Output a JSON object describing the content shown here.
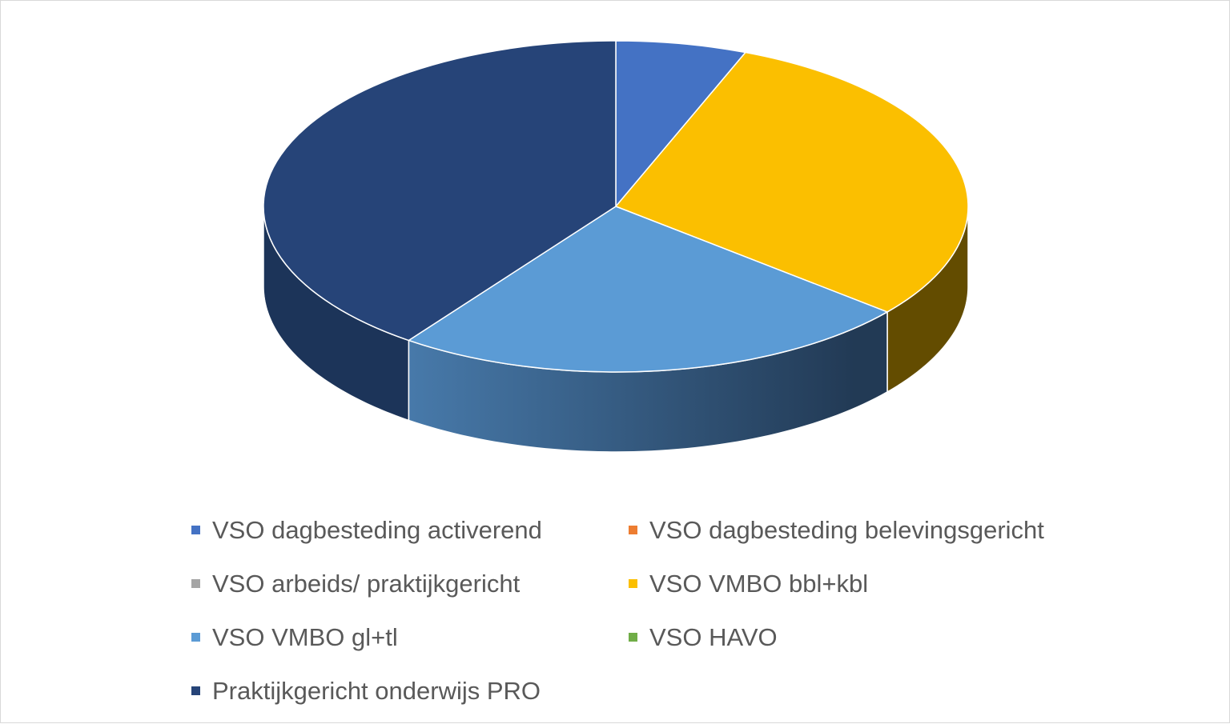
{
  "chart_data": {
    "type": "pie",
    "style": "3d",
    "categories": [
      "VSO dagbesteding activerend",
      "VSO dagbesteding belevingsgericht",
      "VSO arbeids/ praktijkgericht",
      "VSO VMBO bbl+kbl",
      "VSO VMBO gl+tl",
      "VSO HAVO",
      "Praktijkgericht onderwijs PRO"
    ],
    "values": [
      6,
      0,
      0,
      30,
      24,
      0,
      40
    ],
    "colors": [
      "#4472c4",
      "#ed7d31",
      "#a5a5a5",
      "#fbbf00",
      "#5b9bd5",
      "#70ad47",
      "#264478"
    ],
    "legend_position": "bottom"
  }
}
